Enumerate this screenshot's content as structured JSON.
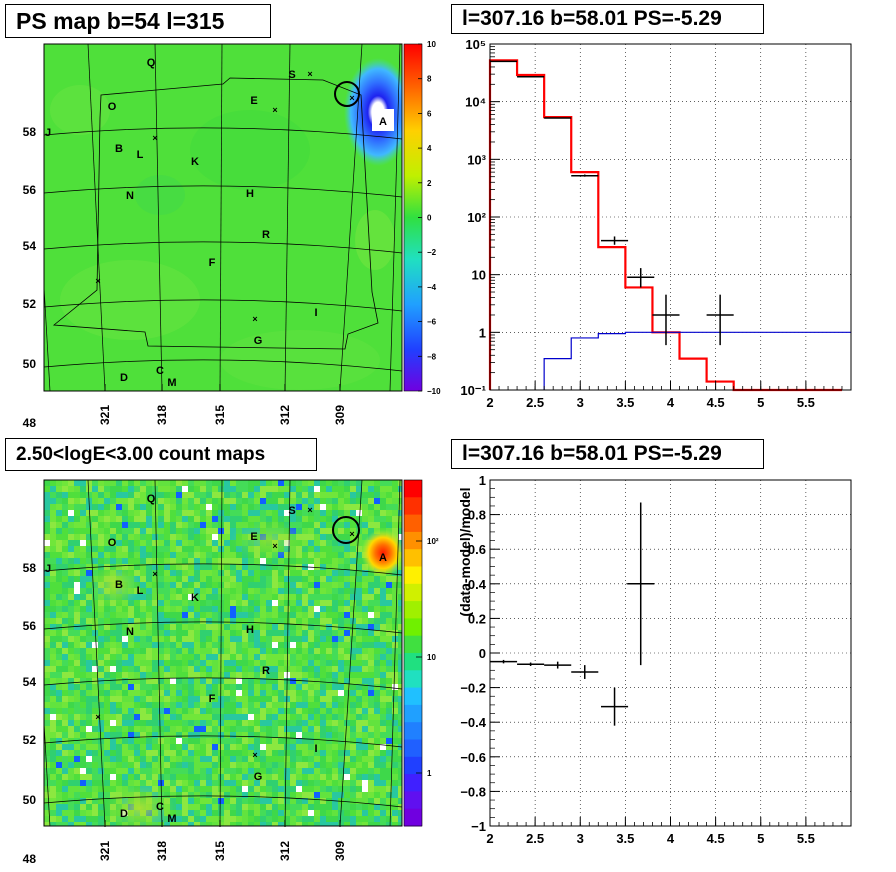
{
  "colors": {
    "map_bg": "#4fe03a",
    "map_bg_bottom": "#63dd3e",
    "grid_line": "#000000",
    "model_red": "#ff0000",
    "model_blue": "#0000cc",
    "data_black": "#000000"
  },
  "panels": {
    "ps_map": {
      "title": "PS map b=54 l=315",
      "colorbar_ticks": [
        "10",
        "8",
        "6",
        "4",
        "2",
        "0",
        "−2",
        "−4",
        "−6",
        "−8",
        "−10"
      ],
      "lat_labels": [
        "58",
        "56",
        "54",
        "52",
        "50",
        "48"
      ],
      "lon_labels": [
        "321",
        "318",
        "315",
        "312",
        "309"
      ],
      "sources": [
        {
          "label": "Q"
        },
        {
          "label": "S"
        },
        {
          "label": "E"
        },
        {
          "label": "O"
        },
        {
          "label": "J"
        },
        {
          "label": "A"
        },
        {
          "label": "B"
        },
        {
          "label": "L"
        },
        {
          "label": "K"
        },
        {
          "label": "N"
        },
        {
          "label": "H"
        },
        {
          "label": "R"
        },
        {
          "label": "F"
        },
        {
          "label": "I"
        },
        {
          "label": "G"
        },
        {
          "label": "D"
        },
        {
          "label": "C"
        },
        {
          "label": "M"
        }
      ]
    },
    "count_map": {
      "title": "2.50<logE<3.00 count maps",
      "colorbar_ticks": [
        "10²",
        "10",
        "1"
      ],
      "lat_labels": [
        "58",
        "56",
        "54",
        "52",
        "50",
        "48"
      ],
      "lon_labels": [
        "321",
        "318",
        "315",
        "312",
        "309"
      ]
    },
    "spectrum": {
      "title": "l=307.16 b=58.01 PS=-5.29"
    },
    "residual": {
      "title": "l=307.16 b=58.01 PS=-5.29"
    }
  },
  "chart_data": [
    {
      "type": "heatmap",
      "title": "PS map b=54 l=315",
      "xlabel": "",
      "ylabel": "",
      "x_ticks": [
        321,
        318,
        315,
        312,
        309
      ],
      "y_ticks": [
        58,
        56,
        54,
        52,
        50,
        48
      ],
      "color_range": [
        -10,
        10
      ]
    },
    {
      "type": "heatmap",
      "title": "2.50<logE<3.00 count maps",
      "x_ticks": [
        321,
        318,
        315,
        312,
        309
      ],
      "y_ticks": [
        58,
        56,
        54,
        52,
        50,
        48
      ],
      "color_scale": "log",
      "color_ticks": [
        "1",
        "10",
        "10²"
      ]
    },
    {
      "type": "line",
      "title": "l=307.16 b=58.01 PS=-5.29",
      "xlabel": "",
      "ylabel": "",
      "xlim": [
        2,
        6
      ],
      "ylim": [
        0.1,
        100000
      ],
      "yscale": "log",
      "x_ticks": [
        "2",
        "2.5",
        "3",
        "3.5",
        "4",
        "4.5",
        "5",
        "5.5"
      ],
      "y_ticks": [
        "10⁻¹",
        "1",
        "10",
        "10²",
        "10³",
        "10⁴",
        "10⁵"
      ],
      "grid": true,
      "series": [
        {
          "kind": "step",
          "color": "#ff0000",
          "edges": [
            2.0,
            2.3,
            2.6,
            2.9,
            3.2,
            3.5,
            3.8,
            4.1,
            4.4,
            4.7,
            5.0,
            5.3,
            5.6,
            5.9
          ],
          "values": [
            52000,
            29000,
            5400,
            600,
            30,
            6,
            1,
            0.35,
            0.14,
            0.1,
            0.1,
            0.1,
            0.1
          ]
        },
        {
          "kind": "step",
          "color": "#0000cc",
          "edges": [
            2.6,
            2.9,
            3.2,
            3.5,
            3.8,
            4.1,
            4.4,
            4.7,
            5.0,
            5.3,
            5.6,
            5.9
          ],
          "values": [
            0.35,
            0.8,
            0.95,
            1,
            1,
            1,
            1,
            1,
            1,
            1,
            1
          ]
        },
        {
          "kind": "errorbar",
          "color": "#000000",
          "points": [
            {
              "x": 2.15,
              "y": 50000,
              "xerr": 0.15,
              "ylo": 50000,
              "yhi": 50000
            },
            {
              "x": 2.45,
              "y": 27000,
              "xerr": 0.15,
              "ylo": 27000,
              "yhi": 27000
            },
            {
              "x": 2.75,
              "y": 5200,
              "xerr": 0.15,
              "ylo": 5200,
              "yhi": 5200
            },
            {
              "x": 3.05,
              "y": 520,
              "xerr": 0.15,
              "ylo": 500,
              "yhi": 545
            },
            {
              "x": 3.38,
              "y": 39,
              "xerr": 0.15,
              "ylo": 33,
              "yhi": 46
            },
            {
              "x": 3.67,
              "y": 9,
              "xerr": 0.15,
              "ylo": 6,
              "yhi": 13
            },
            {
              "x": 3.95,
              "y": 2,
              "xerr": 0.15,
              "ylo": 0.6,
              "yhi": 4.5
            },
            {
              "x": 4.55,
              "y": 2,
              "xerr": 0.15,
              "ylo": 0.6,
              "yhi": 4.5
            }
          ]
        }
      ]
    },
    {
      "type": "scatter",
      "title": "l=307.16 b=58.01 PS=-5.29",
      "xlabel": "",
      "ylabel": "(data-model)/model",
      "xlim": [
        2,
        6
      ],
      "ylim": [
        -1,
        1
      ],
      "x_ticks": [
        "2",
        "2.5",
        "3",
        "3.5",
        "4",
        "4.5",
        "5",
        "5.5"
      ],
      "y_ticks": [
        "−1",
        "−0.8",
        "−0.6",
        "−0.4",
        "−0.2",
        "0",
        "0.2",
        "0.4",
        "0.6",
        "0.8",
        "1"
      ],
      "grid": true,
      "points": [
        {
          "x": 2.15,
          "y": -0.05,
          "xerr": 0.15,
          "yerr": 0.01
        },
        {
          "x": 2.45,
          "y": -0.065,
          "xerr": 0.15,
          "yerr": 0.01
        },
        {
          "x": 2.75,
          "y": -0.07,
          "xerr": 0.15,
          "yerr": 0.02
        },
        {
          "x": 3.05,
          "y": -0.11,
          "xerr": 0.15,
          "yerr": 0.04
        },
        {
          "x": 3.38,
          "y": -0.31,
          "xerr": 0.15,
          "yerr": 0.11
        },
        {
          "x": 3.67,
          "y": 0.4,
          "xerr": 0.15,
          "yerr": 0.47
        }
      ]
    }
  ]
}
